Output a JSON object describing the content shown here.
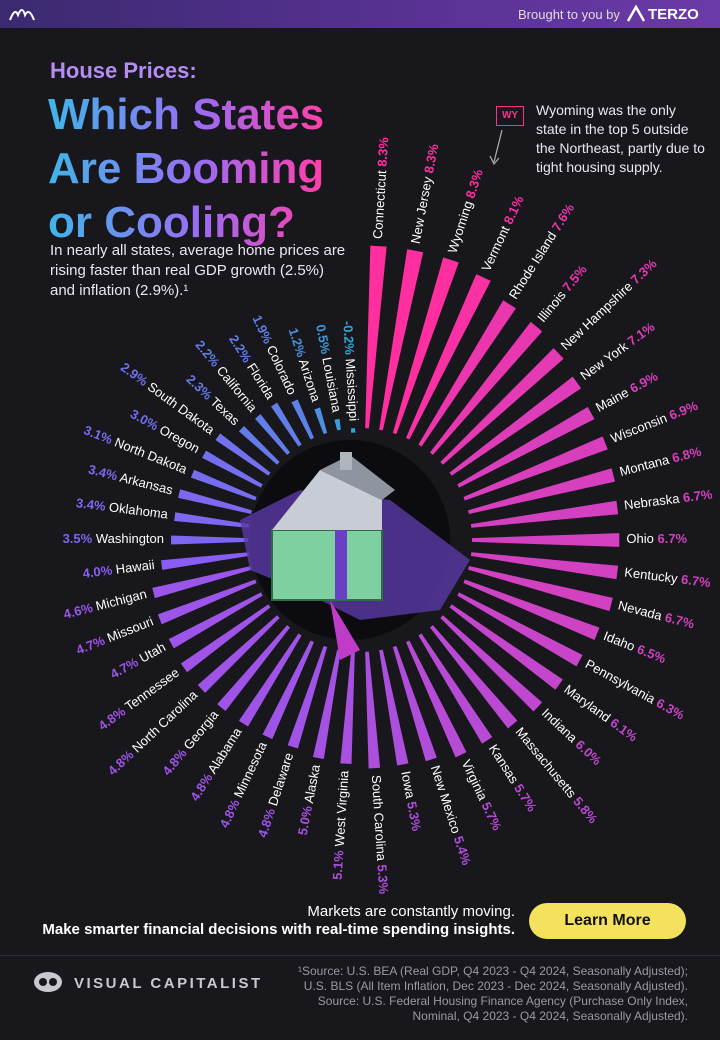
{
  "header": {
    "brought_by": "Brought to you by",
    "sponsor": "TERZO"
  },
  "chart_data": {
    "type": "radial_bar",
    "kicker": "House Prices:",
    "title_lines": [
      "Which States",
      "Are Booming",
      "or Cooling?"
    ],
    "subtitle": "In nearly all states, average home prices are rising faster than real GDP growth (2.5%) and inflation (2.9%).¹",
    "annotation": {
      "tag": "WY",
      "text": "Wyoming was the only state in the top 5 outside the Northeast, partly due to tight housing supply."
    },
    "colors": [
      "#2fa8d8",
      "#8b5cf6",
      "#ff2fa0"
    ],
    "categories": [
      "Connecticut",
      "New Jersey",
      "Wyoming",
      "Vermont",
      "Rhode Island",
      "Illinois",
      "New Hampshire",
      "New York",
      "Maine",
      "Wisconsin",
      "Montana",
      "Nebraska",
      "Ohio",
      "Kentucky",
      "Nevada",
      "Idaho",
      "Pennsylvania",
      "Maryland",
      "Indiana",
      "Massachusetts",
      "Kansas",
      "Virginia",
      "New Mexico",
      "Iowa",
      "South Carolina",
      "West Virginia",
      "Alaska",
      "Delaware",
      "Minnesota",
      "Alabama",
      "Georgia",
      "North Carolina",
      "Tennessee",
      "Utah",
      "Missouri",
      "Michigan",
      "Hawaii",
      "Washington",
      "Oklahoma",
      "Arkansas",
      "North Dakota",
      "Oregon",
      "South Dakota",
      "Texas",
      "California",
      "Florida",
      "Colorado",
      "Arizona",
      "Louisiana",
      "Mississippi"
    ],
    "values": [
      8.3,
      8.3,
      8.3,
      8.1,
      7.6,
      7.5,
      7.3,
      7.1,
      6.9,
      6.9,
      6.8,
      6.7,
      6.7,
      6.7,
      6.7,
      6.5,
      6.3,
      6.1,
      6.0,
      5.8,
      5.7,
      5.7,
      5.4,
      5.3,
      5.3,
      5.1,
      5.0,
      4.8,
      4.8,
      4.8,
      4.8,
      4.8,
      4.8,
      4.7,
      4.7,
      4.6,
      4.0,
      3.5,
      3.4,
      3.4,
      3.1,
      3.0,
      2.9,
      2.3,
      2.2,
      2.2,
      1.9,
      1.2,
      0.5,
      -0.2
    ],
    "value_labels": [
      "8.3%",
      "8.3%",
      "8.3%",
      "8.1%",
      "7.6%",
      "7.5%",
      "7.3%",
      "7.1%",
      "6.9%",
      "6.9%",
      "6.8%",
      "6.7%",
      "6.7%",
      "6.7%",
      "6.7%",
      "6.5%",
      "6.3%",
      "6.1%",
      "6.0%",
      "5.8%",
      "5.7%",
      "5.7%",
      "5.4%",
      "5.3%",
      "5.3%",
      "5.1%",
      "5.0%",
      "4.8%",
      "4.8%",
      "4.8%",
      "4.8%",
      "4.8%",
      "4.8%",
      "4.7%",
      "4.7%",
      "4.6%",
      "4.0%",
      "3.5%",
      "3.4%",
      "3.4%",
      "3.1%",
      "3.0%",
      "2.9%",
      "2.3%",
      "2.2%",
      "2.2%",
      "1.9%",
      "1.2%",
      "0.5%",
      "-0.2%"
    ]
  },
  "cta": {
    "line1": "Markets are constantly moving.",
    "line2": "Make smarter financial decisions with real-time spending insights.",
    "button": "Learn More"
  },
  "footer": {
    "brand": "VISUAL CAPITALIST",
    "source_lines": [
      "¹Source: U.S. BEA (Real GDP, Q4 2023 - Q4 2024, Seasonally Adjusted);",
      "U.S. BLS (All Item Inflation, Dec 2023 - Dec 2024, Seasonally Adjusted).",
      "Source: U.S. Federal Housing Finance Agency (Purchase Only Index,",
      "Nominal, Q4 2023 - Q4 2024, Seasonally Adjusted)."
    ]
  }
}
